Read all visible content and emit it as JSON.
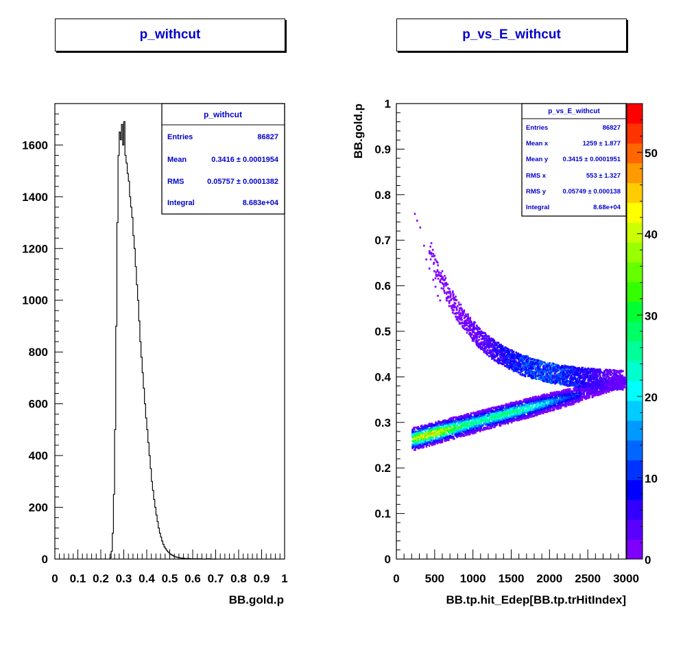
{
  "chart_data": [
    {
      "type": "histogram",
      "title": "p_withcut",
      "xlabel": "BB.gold.p",
      "ylabel": "",
      "xlim": [
        0,
        1
      ],
      "ylim": [
        0,
        1760
      ],
      "xticks": [
        "0",
        "0.1",
        "0.2",
        "0.3",
        "0.4",
        "0.5",
        "0.6",
        "0.7",
        "0.8",
        "0.9",
        "1"
      ],
      "yticks": [
        "0",
        "200",
        "400",
        "600",
        "800",
        "1000",
        "1200",
        "1400",
        "1600"
      ],
      "stats": {
        "title": "p_withcut",
        "rows": [
          {
            "label": "Entries",
            "value": "86827"
          },
          {
            "label": "Mean",
            "value": "0.3416 ± 0.0001954"
          },
          {
            "label": "RMS",
            "value": "0.05757 ± 0.0001382"
          },
          {
            "label": "Integral",
            "value": "8.683e+04"
          }
        ]
      },
      "x": [
        0.24,
        0.245,
        0.25,
        0.255,
        0.26,
        0.265,
        0.27,
        0.275,
        0.28,
        0.285,
        0.29,
        0.295,
        0.3,
        0.305,
        0.31,
        0.315,
        0.32,
        0.325,
        0.33,
        0.335,
        0.34,
        0.345,
        0.35,
        0.355,
        0.36,
        0.365,
        0.37,
        0.375,
        0.38,
        0.385,
        0.39,
        0.395,
        0.4,
        0.405,
        0.41,
        0.415,
        0.42,
        0.425,
        0.43,
        0.435,
        0.44,
        0.445,
        0.45,
        0.455,
        0.46,
        0.465,
        0.47,
        0.475,
        0.48,
        0.485,
        0.49,
        0.495,
        0.5,
        0.505,
        0.51,
        0.515,
        0.52,
        0.525,
        0.53,
        0.535,
        0.54,
        0.545,
        0.55,
        0.555,
        0.56,
        0.565,
        0.57,
        0.58,
        0.59,
        0.6,
        0.62,
        0.64,
        0.66,
        0.68,
        0.7
      ],
      "values": [
        5,
        30,
        100,
        250,
        500,
        900,
        1300,
        1560,
        1650,
        1620,
        1680,
        1600,
        1690,
        1560,
        1530,
        1490,
        1460,
        1400,
        1360,
        1320,
        1250,
        1200,
        1130,
        1060,
        1000,
        920,
        840,
        780,
        720,
        660,
        600,
        545,
        500,
        450,
        400,
        350,
        300,
        265,
        230,
        200,
        170,
        145,
        120,
        100,
        85,
        70,
        57,
        47,
        40,
        34,
        28,
        24,
        20,
        17,
        14,
        12,
        10,
        8,
        7,
        6,
        5,
        4,
        4,
        3,
        3,
        2,
        2,
        2,
        1,
        1,
        1,
        0,
        1,
        0,
        0
      ]
    },
    {
      "type": "heatmap",
      "title": "p_vs_E_withcut",
      "xlabel": "BB.tp.hit_Edep[BB.tp.trHitIndex]",
      "ylabel": "BB.gold.p",
      "xlim": [
        0,
        3000
      ],
      "ylim": [
        0,
        1
      ],
      "xticks": [
        "0",
        "500",
        "1000",
        "1500",
        "2000",
        "2500",
        "3000"
      ],
      "yticks": [
        "0",
        "0.1",
        "0.2",
        "0.3",
        "0.4",
        "0.5",
        "0.6",
        "0.7",
        "0.8",
        "0.9",
        "1"
      ],
      "zlim": [
        0,
        56
      ],
      "zticks": [
        "0",
        "10",
        "20",
        "30",
        "40",
        "50"
      ],
      "palette": [
        "#7f00ff",
        "#5a00ff",
        "#3300ff",
        "#0000ff",
        "#0033ff",
        "#0066ff",
        "#0099ff",
        "#00ccff",
        "#00ffff",
        "#00ffcc",
        "#00ff99",
        "#00ff66",
        "#00ff33",
        "#33ff00",
        "#66ff00",
        "#99ff00",
        "#ccff00",
        "#ffff00",
        "#ffcc00",
        "#ff9900",
        "#ff6600",
        "#ff3300",
        "#ff0000"
      ],
      "bands": [
        {
          "name": "lower",
          "x_start": 200,
          "x_end": 3000,
          "y_start": 0.265,
          "y_end": 0.392,
          "width": 0.018
        },
        {
          "name": "upper",
          "x_start": 420,
          "x_end": 2950,
          "curve": "0.39 + 0.29*exp(-(x-420)/600)",
          "width": 0.022
        }
      ],
      "stats": {
        "title": "p_vs_E_withcut",
        "rows": [
          {
            "label": "Entries",
            "value": "86827"
          },
          {
            "label": "Mean x",
            "value": "1259 ±  1.877"
          },
          {
            "label": "Mean y",
            "value": "0.3415 ± 0.0001951"
          },
          {
            "label": "RMS x",
            "value": "553 ±  1.327"
          },
          {
            "label": "RMS y",
            "value": "0.05749 ± 0.000138"
          },
          {
            "label": "Integral",
            "value": "8.68e+04"
          }
        ]
      }
    }
  ]
}
